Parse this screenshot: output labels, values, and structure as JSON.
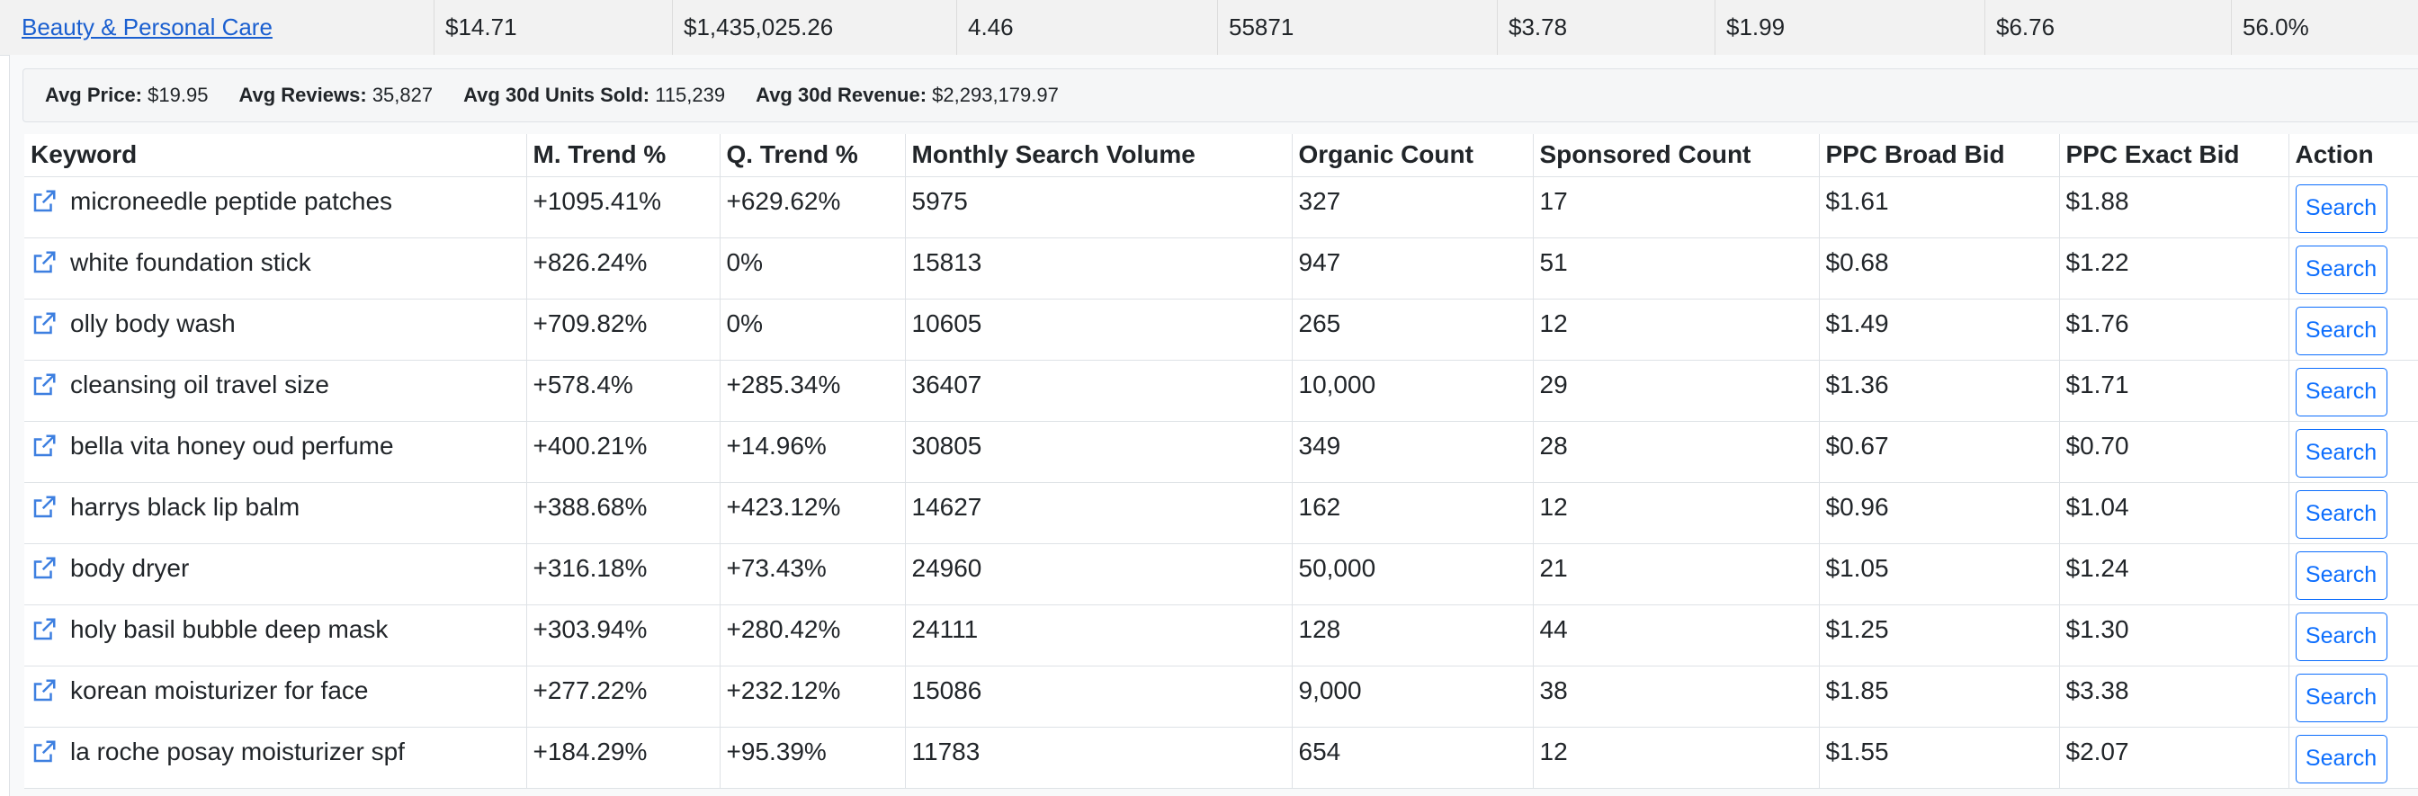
{
  "category_row": {
    "name": "Beauty & Personal Care",
    "cells": [
      "$14.71",
      "$1,435,025.26",
      "4.46",
      "55871",
      "$3.78",
      "$1.99",
      "$6.76",
      "56.0%"
    ]
  },
  "summary": [
    {
      "label": "Avg Price:",
      "value": "$19.95"
    },
    {
      "label": "Avg Reviews:",
      "value": "35,827"
    },
    {
      "label": "Avg 30d Units Sold:",
      "value": "115,239"
    },
    {
      "label": "Avg 30d Revenue:",
      "value": "$2,293,179.97"
    }
  ],
  "table": {
    "headers": [
      "Keyword",
      "M. Trend %",
      "Q. Trend %",
      "Monthly Search Volume",
      "Organic Count",
      "Sponsored Count",
      "PPC Broad Bid",
      "PPC Exact Bid",
      "Action"
    ],
    "action_label": "Search",
    "rows": [
      {
        "keyword": "microneedle peptide patches",
        "m_trend": "+1095.41%",
        "q_trend": "+629.62%",
        "volume": "5975",
        "organic": "327",
        "sponsored": "17",
        "broad": "$1.61",
        "exact": "$1.88"
      },
      {
        "keyword": "white foundation stick",
        "m_trend": "+826.24%",
        "q_trend": "0%",
        "volume": "15813",
        "organic": "947",
        "sponsored": "51",
        "broad": "$0.68",
        "exact": "$1.22"
      },
      {
        "keyword": "olly body wash",
        "m_trend": "+709.82%",
        "q_trend": "0%",
        "volume": "10605",
        "organic": "265",
        "sponsored": "12",
        "broad": "$1.49",
        "exact": "$1.76"
      },
      {
        "keyword": "cleansing oil travel size",
        "m_trend": "+578.4%",
        "q_trend": "+285.34%",
        "volume": "36407",
        "organic": "10,000",
        "sponsored": "29",
        "broad": "$1.36",
        "exact": "$1.71"
      },
      {
        "keyword": "bella vita honey oud perfume",
        "m_trend": "+400.21%",
        "q_trend": "+14.96%",
        "volume": "30805",
        "organic": "349",
        "sponsored": "28",
        "broad": "$0.67",
        "exact": "$0.70"
      },
      {
        "keyword": "harrys black lip balm",
        "m_trend": "+388.68%",
        "q_trend": "+423.12%",
        "volume": "14627",
        "organic": "162",
        "sponsored": "12",
        "broad": "$0.96",
        "exact": "$1.04"
      },
      {
        "keyword": "body dryer",
        "m_trend": "+316.18%",
        "q_trend": "+73.43%",
        "volume": "24960",
        "organic": "50,000",
        "sponsored": "21",
        "broad": "$1.05",
        "exact": "$1.24"
      },
      {
        "keyword": "holy basil bubble deep mask",
        "m_trend": "+303.94%",
        "q_trend": "+280.42%",
        "volume": "24111",
        "organic": "128",
        "sponsored": "44",
        "broad": "$1.25",
        "exact": "$1.30"
      },
      {
        "keyword": "korean moisturizer for face",
        "m_trend": "+277.22%",
        "q_trend": "+232.12%",
        "volume": "15086",
        "organic": "9,000",
        "sponsored": "38",
        "broad": "$1.85",
        "exact": "$3.38"
      },
      {
        "keyword": "la roche posay moisturizer spf",
        "m_trend": "+184.29%",
        "q_trend": "+95.39%",
        "volume": "11783",
        "organic": "654",
        "sponsored": "12",
        "broad": "$1.55",
        "exact": "$2.07"
      }
    ]
  },
  "icons": {
    "row_link_icon": "external-link-icon"
  },
  "colors": {
    "link": "#1a5fd0",
    "button": "#0d6efd"
  }
}
